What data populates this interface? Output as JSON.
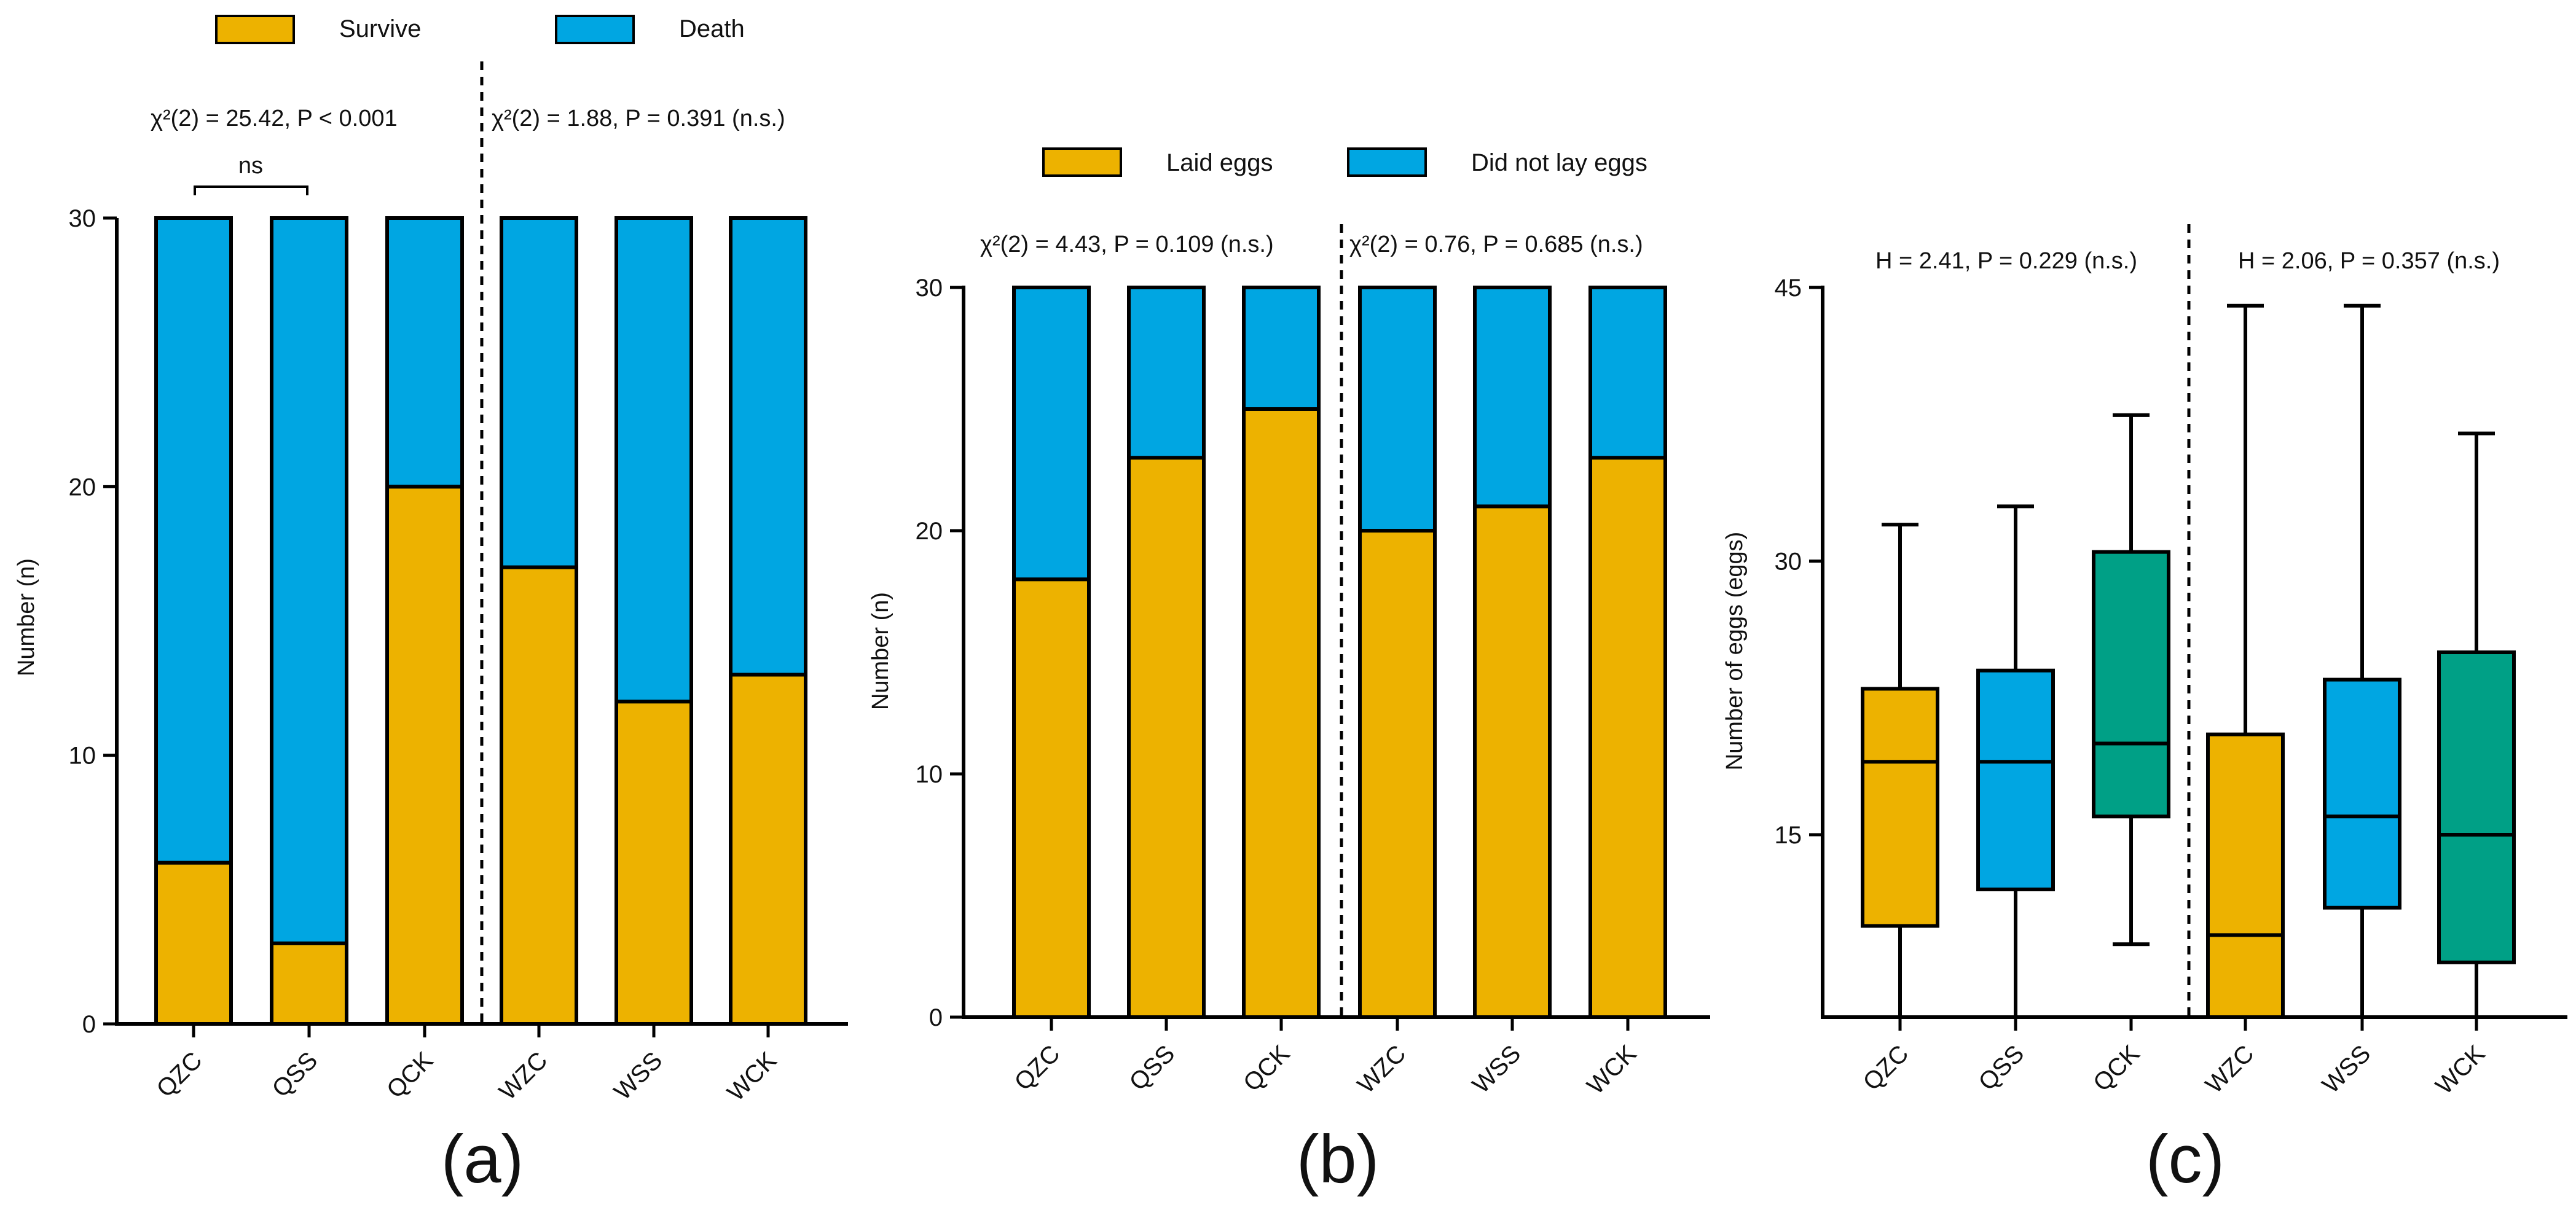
{
  "colors": {
    "yellow": "#EDB200",
    "blue": "#00A6E2",
    "green": "#00A086",
    "outline": "#000000"
  },
  "chart_data": [
    {
      "panel": "(a)",
      "type": "bar",
      "stacked": true,
      "categories": [
        "QZC",
        "QSS",
        "QCK",
        "WZC",
        "WSS",
        "WCK"
      ],
      "series": [
        {
          "name": "Survive",
          "color": "#EDB200",
          "values": [
            6,
            3,
            20,
            17,
            12,
            13
          ]
        },
        {
          "name": "Death",
          "color": "#00A6E2",
          "values": [
            24,
            27,
            10,
            13,
            18,
            17
          ]
        }
      ],
      "ylabel": "Number (n)",
      "ylim": [
        0,
        30
      ],
      "yticks": [
        0,
        10,
        20,
        30
      ],
      "annotations": {
        "left_test": "χ²(2) = 25.42, P < 0.001",
        "right_test": "χ²(2) = 1.88, P = 0.391 (n.s.)",
        "bracket": "ns"
      }
    },
    {
      "panel": "(b)",
      "type": "bar",
      "stacked": true,
      "categories": [
        "QZC",
        "QSS",
        "QCK",
        "WZC",
        "WSS",
        "WCK"
      ],
      "series": [
        {
          "name": "Laid eggs",
          "color": "#EDB200",
          "values": [
            18,
            23,
            25,
            20,
            21,
            23
          ]
        },
        {
          "name": "Did not lay eggs",
          "color": "#00A6E2",
          "values": [
            12,
            7,
            5,
            10,
            9,
            7
          ]
        }
      ],
      "ylabel": "Number (n)",
      "ylim": [
        0,
        30
      ],
      "yticks": [
        0,
        10,
        20,
        30
      ],
      "annotations": {
        "left_test": "χ²(2) = 4.43, P = 0.109  (n.s.)",
        "right_test": "χ²(2) = 0.76, P = 0.685  (n.s.)"
      }
    },
    {
      "panel": "(c)",
      "type": "box",
      "categories": [
        "QZC",
        "QSS",
        "QCK",
        "WZC",
        "WSS",
        "WCK"
      ],
      "boxes": [
        {
          "min": 5,
          "q1": 10,
          "median": 19,
          "q3": 23,
          "max": 32,
          "color": "#EDB200"
        },
        {
          "min": 5,
          "q1": 12,
          "median": 19,
          "q3": 24,
          "max": 33,
          "color": "#00A6E2"
        },
        {
          "min": 9,
          "q1": 16,
          "median": 20,
          "q3": 30.5,
          "max": 38,
          "color": "#00A086"
        },
        {
          "min": 5,
          "q1": 5,
          "median": 9.5,
          "q3": 20.5,
          "max": 44,
          "color": "#EDB200"
        },
        {
          "min": 5,
          "q1": 11,
          "median": 16,
          "q3": 23.5,
          "max": 44,
          "color": "#00A6E2"
        },
        {
          "min": 5,
          "q1": 8,
          "median": 15,
          "q3": 25,
          "max": 37,
          "color": "#00A086"
        }
      ],
      "ylabel": "Number of eggs (eggs)",
      "ylim": [
        5,
        45
      ],
      "yticks": [
        15,
        30,
        45
      ],
      "annotations": {
        "left_test": "H = 2.41, P = 0.229 (n.s.)",
        "right_test": "H = 2.06, P = 0.357 (n.s.)"
      }
    }
  ]
}
